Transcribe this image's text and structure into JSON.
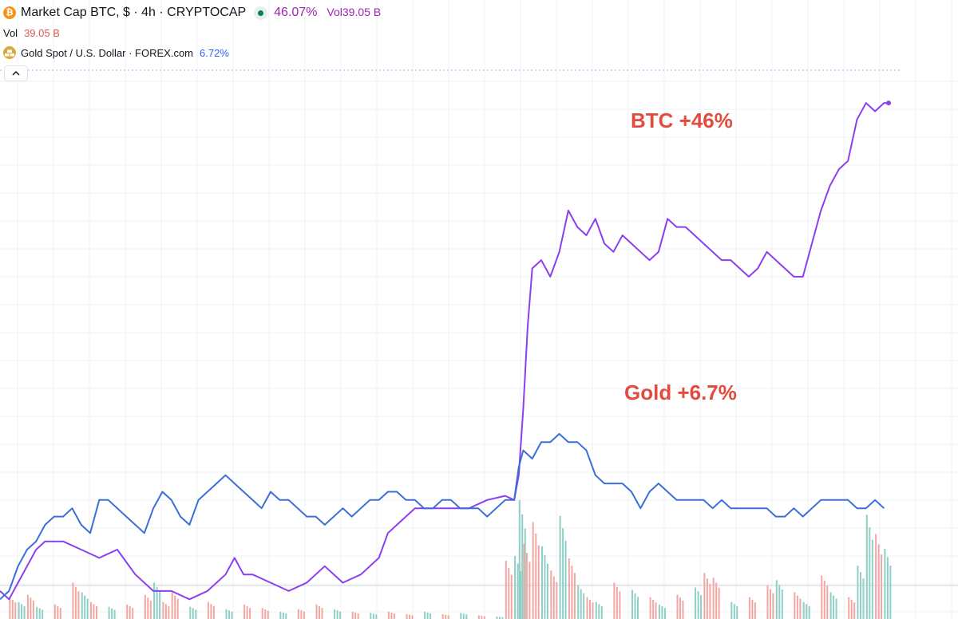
{
  "header": {
    "btc_icon_glyph": "₿",
    "btc_title": "Market Cap BTC, $ · 4h · CRYPTOCAP",
    "btc_change": "46.07%",
    "vol_word": "Vol",
    "vol_value_inline": "39.05 B",
    "vol_row_label": "Vol",
    "vol_row_value": "39.05 B",
    "gold_title": "Gold Spot / U.S. Dollar · FOREX.com",
    "gold_change": "6.72%"
  },
  "annotations": {
    "btc": "BTC +46%",
    "gold": "Gold +6.7%"
  },
  "colors": {
    "btc_line": "#8a3ff0",
    "gold_line": "#3a6fd8",
    "vol_up": "#8ecfc6",
    "vol_down": "#f2a7a3",
    "annotation": "#e34b3f",
    "grid": "#eef0f5"
  },
  "chart_data": {
    "type": "line",
    "grid": true,
    "x": {
      "min": 0,
      "max": 100
    },
    "y": {
      "min": -15,
      "max": 50,
      "unit": "%"
    },
    "series": [
      {
        "name": "Market Cap BTC",
        "color": "#8a3ff0",
        "points": [
          [
            0,
            -12
          ],
          [
            1,
            -13
          ],
          [
            2,
            -11
          ],
          [
            3,
            -9
          ],
          [
            4,
            -7
          ],
          [
            5,
            -6
          ],
          [
            7,
            -6
          ],
          [
            9,
            -7
          ],
          [
            11,
            -8
          ],
          [
            13,
            -7
          ],
          [
            15,
            -10
          ],
          [
            17,
            -12
          ],
          [
            19,
            -12
          ],
          [
            21,
            -13
          ],
          [
            23,
            -12
          ],
          [
            25,
            -10
          ],
          [
            26,
            -8
          ],
          [
            27,
            -10
          ],
          [
            28,
            -10
          ],
          [
            30,
            -11
          ],
          [
            32,
            -12
          ],
          [
            34,
            -11
          ],
          [
            36,
            -9
          ],
          [
            38,
            -11
          ],
          [
            40,
            -10
          ],
          [
            42,
            -8
          ],
          [
            43,
            -5
          ],
          [
            44,
            -4
          ],
          [
            46,
            -2
          ],
          [
            48,
            -2
          ],
          [
            50,
            -2
          ],
          [
            52,
            -2
          ],
          [
            54,
            -1
          ],
          [
            56,
            -0.5
          ],
          [
            57,
            -1
          ],
          [
            57.5,
            2
          ],
          [
            58,
            10
          ],
          [
            58.5,
            20
          ],
          [
            59,
            27
          ],
          [
            60,
            28
          ],
          [
            61,
            26
          ],
          [
            62,
            29
          ],
          [
            63,
            34
          ],
          [
            64,
            32
          ],
          [
            65,
            31
          ],
          [
            66,
            33
          ],
          [
            67,
            30
          ],
          [
            68,
            29
          ],
          [
            69,
            31
          ],
          [
            70,
            30
          ],
          [
            71,
            29
          ],
          [
            72,
            28
          ],
          [
            73,
            29
          ],
          [
            74,
            33
          ],
          [
            75,
            32
          ],
          [
            76,
            32
          ],
          [
            77,
            31
          ],
          [
            78,
            30
          ],
          [
            79,
            29
          ],
          [
            80,
            28
          ],
          [
            81,
            28
          ],
          [
            82,
            27
          ],
          [
            83,
            26
          ],
          [
            84,
            27
          ],
          [
            85,
            29
          ],
          [
            86,
            28
          ],
          [
            87,
            27
          ],
          [
            88,
            26
          ],
          [
            89,
            26
          ],
          [
            90,
            30
          ],
          [
            91,
            34
          ],
          [
            92,
            37
          ],
          [
            93,
            39
          ],
          [
            94,
            40
          ],
          [
            95,
            45
          ],
          [
            96,
            47
          ],
          [
            97,
            46
          ],
          [
            98,
            47
          ],
          [
            98.5,
            47
          ]
        ]
      },
      {
        "name": "Gold Spot / U.S. Dollar",
        "color": "#3a6fd8",
        "points": [
          [
            0,
            -13
          ],
          [
            1,
            -12
          ],
          [
            2,
            -9
          ],
          [
            3,
            -7
          ],
          [
            4,
            -6
          ],
          [
            5,
            -4
          ],
          [
            6,
            -3
          ],
          [
            7,
            -3
          ],
          [
            8,
            -2
          ],
          [
            9,
            -4
          ],
          [
            10,
            -5
          ],
          [
            11,
            -1
          ],
          [
            12,
            -1
          ],
          [
            13,
            -2
          ],
          [
            14,
            -3
          ],
          [
            15,
            -4
          ],
          [
            16,
            -5
          ],
          [
            17,
            -2
          ],
          [
            18,
            0
          ],
          [
            19,
            -1
          ],
          [
            20,
            -3
          ],
          [
            21,
            -4
          ],
          [
            22,
            -1
          ],
          [
            23,
            0
          ],
          [
            24,
            1
          ],
          [
            25,
            2
          ],
          [
            26,
            1
          ],
          [
            27,
            0
          ],
          [
            28,
            -1
          ],
          [
            29,
            -2
          ],
          [
            30,
            0
          ],
          [
            31,
            -1
          ],
          [
            32,
            -1
          ],
          [
            33,
            -2
          ],
          [
            34,
            -3
          ],
          [
            35,
            -3
          ],
          [
            36,
            -4
          ],
          [
            37,
            -3
          ],
          [
            38,
            -2
          ],
          [
            39,
            -3
          ],
          [
            40,
            -2
          ],
          [
            41,
            -1
          ],
          [
            42,
            -1
          ],
          [
            43,
            0
          ],
          [
            44,
            0
          ],
          [
            45,
            -1
          ],
          [
            46,
            -1
          ],
          [
            47,
            -2
          ],
          [
            48,
            -2
          ],
          [
            49,
            -1
          ],
          [
            50,
            -1
          ],
          [
            51,
            -2
          ],
          [
            52,
            -2
          ],
          [
            53,
            -2
          ],
          [
            54,
            -3
          ],
          [
            55,
            -2
          ],
          [
            56,
            -1
          ],
          [
            57,
            -1
          ],
          [
            57.5,
            3
          ],
          [
            58,
            5
          ],
          [
            59,
            4
          ],
          [
            60,
            6
          ],
          [
            61,
            6
          ],
          [
            62,
            7
          ],
          [
            63,
            6
          ],
          [
            64,
            6
          ],
          [
            65,
            5
          ],
          [
            66,
            2
          ],
          [
            67,
            1
          ],
          [
            68,
            1
          ],
          [
            69,
            1
          ],
          [
            70,
            0
          ],
          [
            71,
            -2
          ],
          [
            72,
            0
          ],
          [
            73,
            1
          ],
          [
            74,
            0
          ],
          [
            75,
            -1
          ],
          [
            76,
            -1
          ],
          [
            77,
            -1
          ],
          [
            78,
            -1
          ],
          [
            79,
            -2
          ],
          [
            80,
            -1
          ],
          [
            81,
            -2
          ],
          [
            82,
            -2
          ],
          [
            83,
            -2
          ],
          [
            84,
            -2
          ],
          [
            85,
            -2
          ],
          [
            86,
            -3
          ],
          [
            87,
            -3
          ],
          [
            88,
            -2
          ],
          [
            89,
            -3
          ],
          [
            90,
            -2
          ],
          [
            91,
            -1
          ],
          [
            92,
            -1
          ],
          [
            93,
            -1
          ],
          [
            94,
            -1
          ],
          [
            95,
            -2
          ],
          [
            96,
            -2
          ],
          [
            97,
            -1
          ],
          [
            98,
            -2
          ]
        ]
      }
    ],
    "volume": {
      "min": 0,
      "max": 100,
      "bars": [
        [
          1,
          18,
          "d"
        ],
        [
          2,
          14,
          "u"
        ],
        [
          3,
          20,
          "d"
        ],
        [
          4,
          10,
          "u"
        ],
        [
          6,
          12,
          "d"
        ],
        [
          8,
          30,
          "d"
        ],
        [
          9,
          22,
          "u"
        ],
        [
          10,
          14,
          "d"
        ],
        [
          12,
          10,
          "u"
        ],
        [
          14,
          12,
          "d"
        ],
        [
          16,
          20,
          "d"
        ],
        [
          17,
          30,
          "u"
        ],
        [
          18,
          14,
          "d"
        ],
        [
          19,
          22,
          "d"
        ],
        [
          21,
          10,
          "u"
        ],
        [
          23,
          14,
          "d"
        ],
        [
          25,
          8,
          "u"
        ],
        [
          27,
          12,
          "d"
        ],
        [
          29,
          9,
          "d"
        ],
        [
          31,
          6,
          "u"
        ],
        [
          33,
          8,
          "d"
        ],
        [
          35,
          12,
          "d"
        ],
        [
          37,
          8,
          "u"
        ],
        [
          39,
          6,
          "d"
        ],
        [
          41,
          5,
          "u"
        ],
        [
          43,
          6,
          "d"
        ],
        [
          45,
          4,
          "d"
        ],
        [
          47,
          6,
          "u"
        ],
        [
          49,
          4,
          "d"
        ],
        [
          51,
          5,
          "u"
        ],
        [
          53,
          3,
          "d"
        ],
        [
          55,
          2,
          "u"
        ],
        [
          56,
          48,
          "d"
        ],
        [
          57,
          52,
          "u"
        ],
        [
          57.5,
          98,
          "u"
        ],
        [
          58,
          62,
          "d"
        ],
        [
          59,
          80,
          "d"
        ],
        [
          60,
          60,
          "u"
        ],
        [
          61,
          40,
          "d"
        ],
        [
          62,
          85,
          "u"
        ],
        [
          63,
          50,
          "d"
        ],
        [
          64,
          28,
          "u"
        ],
        [
          65,
          18,
          "d"
        ],
        [
          66,
          14,
          "u"
        ],
        [
          68,
          30,
          "d"
        ],
        [
          70,
          24,
          "u"
        ],
        [
          72,
          18,
          "d"
        ],
        [
          73,
          12,
          "u"
        ],
        [
          75,
          20,
          "d"
        ],
        [
          77,
          26,
          "u"
        ],
        [
          78,
          38,
          "d"
        ],
        [
          79,
          34,
          "d"
        ],
        [
          81,
          14,
          "u"
        ],
        [
          83,
          18,
          "d"
        ],
        [
          85,
          28,
          "d"
        ],
        [
          86,
          32,
          "u"
        ],
        [
          88,
          22,
          "d"
        ],
        [
          89,
          14,
          "u"
        ],
        [
          91,
          36,
          "d"
        ],
        [
          92,
          22,
          "u"
        ],
        [
          94,
          18,
          "d"
        ],
        [
          95,
          44,
          "u"
        ],
        [
          96,
          86,
          "u"
        ],
        [
          97,
          70,
          "d"
        ],
        [
          98,
          58,
          "u"
        ]
      ]
    }
  }
}
